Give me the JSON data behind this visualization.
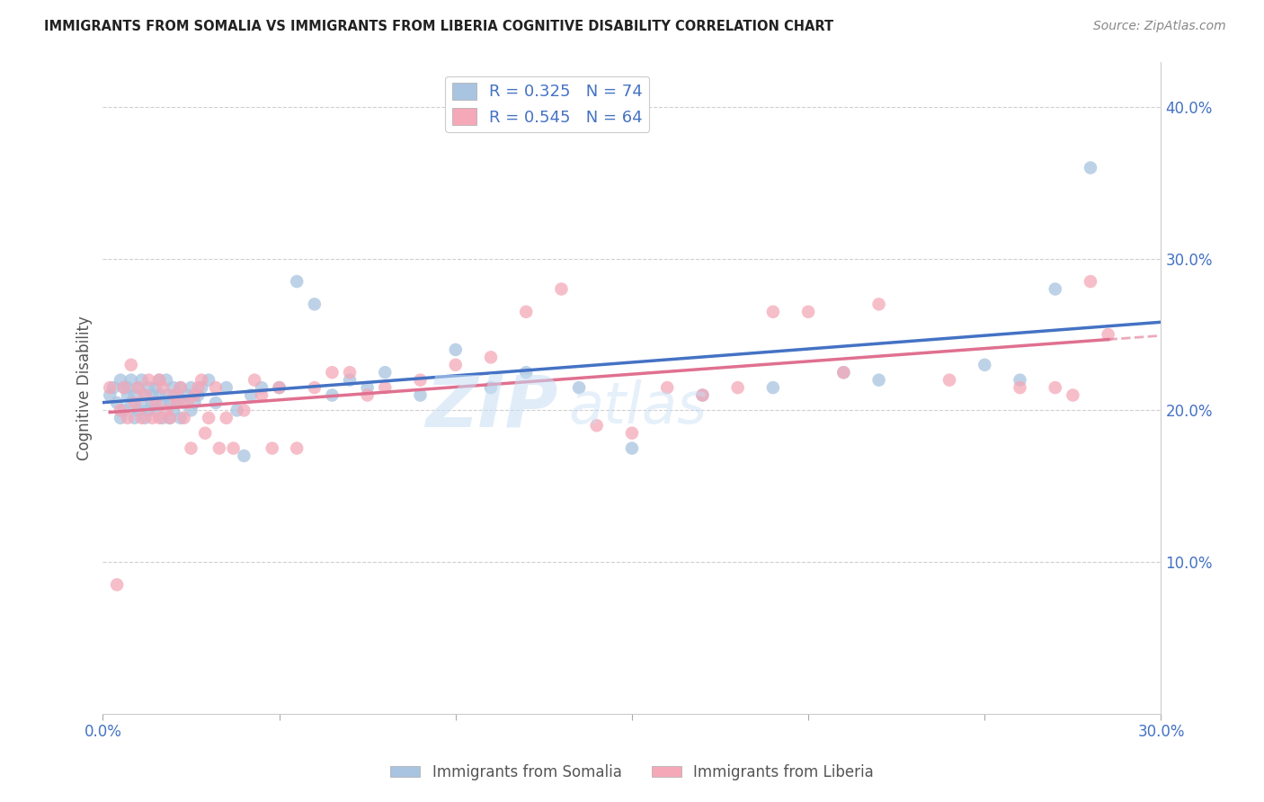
{
  "title": "IMMIGRANTS FROM SOMALIA VS IMMIGRANTS FROM LIBERIA COGNITIVE DISABILITY CORRELATION CHART",
  "source": "Source: ZipAtlas.com",
  "ylabel": "Cognitive Disability",
  "xlim": [
    0.0,
    0.3
  ],
  "ylim": [
    0.0,
    0.43
  ],
  "ytick_values": [
    0.1,
    0.2,
    0.3,
    0.4
  ],
  "xtick_values": [
    0.0,
    0.05,
    0.1,
    0.15,
    0.2,
    0.25,
    0.3
  ],
  "legend_somalia": "Immigrants from Somalia",
  "legend_liberia": "Immigrants from Liberia",
  "R_somalia": "0.325",
  "N_somalia": "74",
  "R_liberia": "0.545",
  "N_liberia": "64",
  "color_somalia": "#a8c4e0",
  "color_liberia": "#f4a8b8",
  "line_color_somalia": "#4472c4",
  "line_color_liberia": "#e07090",
  "watermark_zip": "ZIP",
  "watermark_atlas": "atlas",
  "somalia_x": [
    0.002,
    0.003,
    0.004,
    0.005,
    0.005,
    0.006,
    0.006,
    0.007,
    0.007,
    0.008,
    0.008,
    0.009,
    0.009,
    0.01,
    0.01,
    0.011,
    0.011,
    0.012,
    0.012,
    0.013,
    0.013,
    0.014,
    0.014,
    0.015,
    0.015,
    0.016,
    0.016,
    0.017,
    0.017,
    0.018,
    0.018,
    0.019,
    0.019,
    0.02,
    0.02,
    0.021,
    0.021,
    0.022,
    0.022,
    0.023,
    0.024,
    0.025,
    0.025,
    0.026,
    0.027,
    0.028,
    0.03,
    0.032,
    0.035,
    0.038,
    0.04,
    0.042,
    0.045,
    0.05,
    0.055,
    0.06,
    0.065,
    0.07,
    0.075,
    0.08,
    0.09,
    0.1,
    0.11,
    0.12,
    0.135,
    0.15,
    0.17,
    0.19,
    0.21,
    0.22,
    0.25,
    0.26,
    0.27,
    0.28
  ],
  "somalia_y": [
    0.21,
    0.215,
    0.205,
    0.22,
    0.195,
    0.215,
    0.2,
    0.21,
    0.215,
    0.205,
    0.22,
    0.21,
    0.195,
    0.215,
    0.2,
    0.205,
    0.22,
    0.195,
    0.21,
    0.215,
    0.2,
    0.21,
    0.205,
    0.215,
    0.2,
    0.21,
    0.22,
    0.195,
    0.205,
    0.21,
    0.22,
    0.205,
    0.195,
    0.215,
    0.2,
    0.21,
    0.205,
    0.215,
    0.195,
    0.205,
    0.21,
    0.215,
    0.2,
    0.205,
    0.21,
    0.215,
    0.22,
    0.205,
    0.215,
    0.2,
    0.17,
    0.21,
    0.215,
    0.215,
    0.285,
    0.27,
    0.21,
    0.22,
    0.215,
    0.225,
    0.21,
    0.24,
    0.215,
    0.225,
    0.215,
    0.175,
    0.21,
    0.215,
    0.225,
    0.22,
    0.23,
    0.22,
    0.28,
    0.36
  ],
  "liberia_x": [
    0.002,
    0.004,
    0.005,
    0.006,
    0.007,
    0.008,
    0.009,
    0.01,
    0.011,
    0.012,
    0.013,
    0.014,
    0.015,
    0.016,
    0.016,
    0.017,
    0.018,
    0.019,
    0.02,
    0.021,
    0.022,
    0.023,
    0.024,
    0.025,
    0.026,
    0.027,
    0.028,
    0.029,
    0.03,
    0.032,
    0.033,
    0.035,
    0.037,
    0.04,
    0.043,
    0.045,
    0.048,
    0.05,
    0.055,
    0.06,
    0.065,
    0.07,
    0.075,
    0.08,
    0.09,
    0.1,
    0.11,
    0.12,
    0.13,
    0.14,
    0.15,
    0.16,
    0.17,
    0.18,
    0.19,
    0.2,
    0.21,
    0.22,
    0.24,
    0.26,
    0.27,
    0.275,
    0.28,
    0.285
  ],
  "liberia_y": [
    0.215,
    0.085,
    0.2,
    0.215,
    0.195,
    0.23,
    0.205,
    0.215,
    0.195,
    0.21,
    0.22,
    0.195,
    0.205,
    0.22,
    0.195,
    0.215,
    0.2,
    0.195,
    0.21,
    0.205,
    0.215,
    0.195,
    0.205,
    0.175,
    0.21,
    0.215,
    0.22,
    0.185,
    0.195,
    0.215,
    0.175,
    0.195,
    0.175,
    0.2,
    0.22,
    0.21,
    0.175,
    0.215,
    0.175,
    0.215,
    0.225,
    0.225,
    0.21,
    0.215,
    0.22,
    0.23,
    0.235,
    0.265,
    0.28,
    0.19,
    0.185,
    0.215,
    0.21,
    0.215,
    0.265,
    0.265,
    0.225,
    0.27,
    0.22,
    0.215,
    0.215,
    0.21,
    0.285,
    0.25
  ]
}
